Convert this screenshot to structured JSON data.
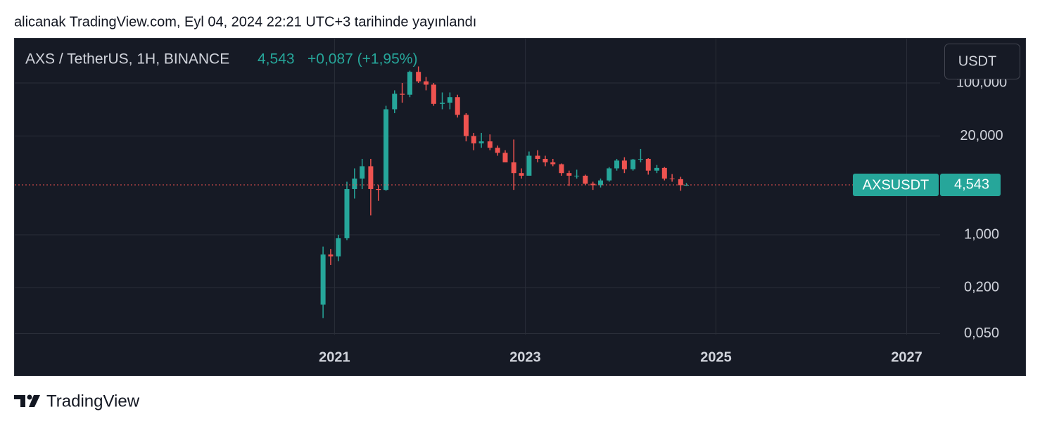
{
  "header": "alicanak TradingView.com, Eyl 04, 2024 22:21 UTC+3 tarihinde yayınlandı",
  "footer_brand": "TradingView",
  "chart_data": {
    "type": "candlestick",
    "title": "AXS / TetherUS, 1H, BINANCE",
    "last_price_label": "4,543",
    "change_label": "+0,087 (+1,95%)",
    "currency": "USDT",
    "symbol_label": "AXSUSDT",
    "log_scale": true,
    "grid": true,
    "up_color": "#26a69a",
    "down_color": "#ef5350",
    "x": [
      2020.88,
      2020.96,
      2021.04,
      2021.13,
      2021.21,
      2021.29,
      2021.38,
      2021.46,
      2021.54,
      2021.63,
      2021.71,
      2021.79,
      2021.88,
      2021.96,
      2022.04,
      2022.13,
      2022.21,
      2022.29,
      2022.38,
      2022.46,
      2022.54,
      2022.63,
      2022.71,
      2022.79,
      2022.88,
      2022.96,
      2023.04,
      2023.13,
      2023.21,
      2023.29,
      2023.38,
      2023.46,
      2023.54,
      2023.63,
      2023.71,
      2023.79,
      2023.88,
      2023.96,
      2024.04,
      2024.13,
      2024.21,
      2024.29,
      2024.38,
      2024.46,
      2024.54,
      2024.63,
      2024.69
    ],
    "open": [
      0.12,
      0.55,
      0.52,
      0.9,
      4.0,
      5.5,
      8,
      4,
      3.9,
      45,
      72,
      70,
      140,
      105,
      95,
      53,
      55,
      65,
      38,
      20,
      16,
      17,
      14,
      12,
      9,
      6.5,
      6,
      11,
      10,
      9,
      8.5,
      6.5,
      6,
      6,
      4.7,
      4.5,
      5.2,
      7.5,
      9.5,
      7.3,
      9.8,
      10,
      7,
      7.6,
      5.5,
      5.4,
      4.5
    ],
    "high": [
      0.7,
      0.65,
      1.0,
      5.0,
      7.5,
      10,
      10,
      4.5,
      50,
      80,
      100,
      145,
      165,
      120,
      100,
      75,
      75,
      70,
      40,
      22,
      22,
      21,
      15,
      13,
      18,
      7.5,
      12.5,
      13,
      11,
      10,
      8.7,
      7,
      7.2,
      6.2,
      5,
      5.5,
      7.8,
      10,
      10.5,
      10,
      13.5,
      10.2,
      8.3,
      7.8,
      6.3,
      5.8,
      4.8
    ],
    "low": [
      0.08,
      0.4,
      0.45,
      0.85,
      3.0,
      4.0,
      1.8,
      2.8,
      3.8,
      40,
      55,
      65,
      100,
      80,
      50,
      45,
      45,
      35,
      17,
      13,
      14,
      13,
      11,
      9,
      3.9,
      5.5,
      6,
      9,
      8,
      8,
      6,
      4.4,
      5.5,
      4.6,
      3.9,
      4.2,
      5,
      7,
      6.5,
      7,
      9,
      6.2,
      6.5,
      5.2,
      5,
      3.8,
      4.4
    ],
    "close": [
      0.55,
      0.52,
      0.9,
      4.0,
      5.5,
      8,
      4,
      3.9,
      45,
      72,
      70,
      140,
      105,
      95,
      53,
      55,
      65,
      38,
      20,
      16,
      17,
      14,
      12,
      9,
      6.5,
      6,
      11,
      10,
      9,
      8.5,
      6.5,
      6,
      6,
      4.7,
      4.5,
      5.2,
      7.5,
      9.5,
      7.3,
      9.8,
      10,
      7,
      7.6,
      5.5,
      5.4,
      4.5,
      4.543
    ],
    "xlim": [
      2017.64,
      2027.35
    ],
    "xticks": [
      2021,
      2023,
      2025,
      2027
    ],
    "ylim": [
      0.0484,
      391.5
    ],
    "yticks": [
      {
        "value": 100,
        "label": "100,000"
      },
      {
        "value": 20,
        "label": "20,000"
      },
      {
        "value": 1,
        "label": "1,000"
      },
      {
        "value": 0.2,
        "label": "0,200"
      },
      {
        "value": 0.05,
        "label": "0,050"
      }
    ]
  }
}
